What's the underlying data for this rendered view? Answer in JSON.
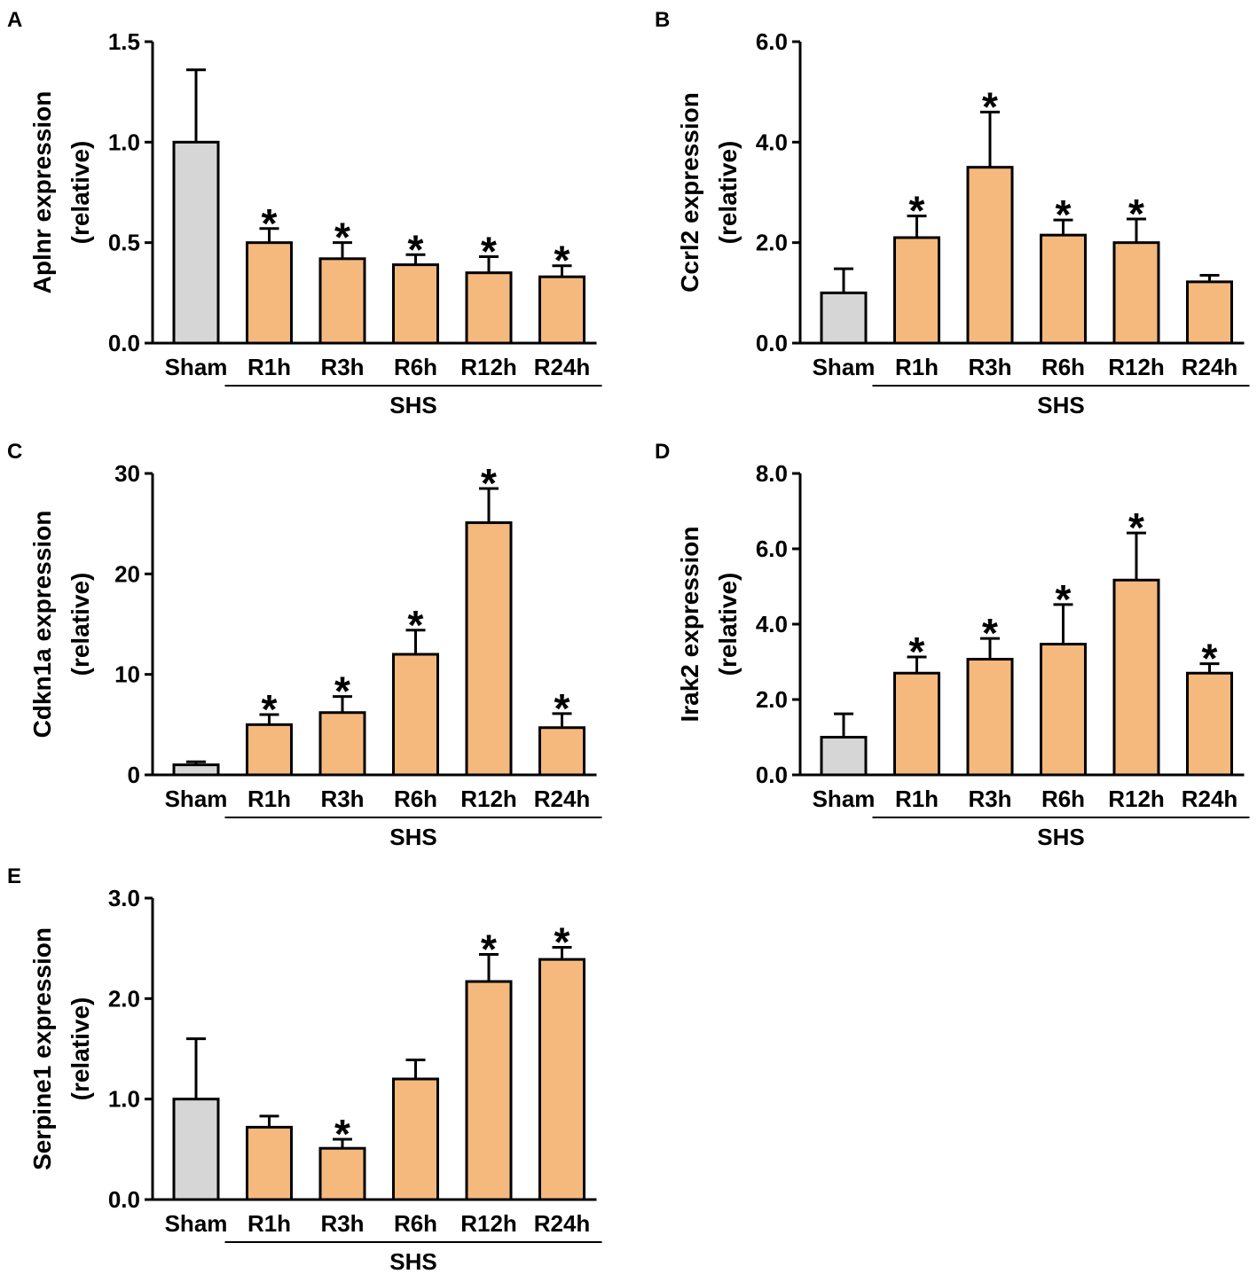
{
  "colors": {
    "sham": "#d6d6d6",
    "shs": "#f5b97e",
    "stroke": "#000000"
  },
  "chart_data": [
    {
      "panel_label": "A",
      "type": "bar",
      "ylabel_line1": "Aplnr expression",
      "ylabel_line2": "(relative)",
      "group_label": "SHS",
      "categories": [
        "Sham",
        "R1h",
        "R3h",
        "R6h",
        "R12h",
        "R24h"
      ],
      "values": [
        1.0,
        0.5,
        0.42,
        0.39,
        0.35,
        0.33
      ],
      "errors": [
        0.36,
        0.07,
        0.08,
        0.05,
        0.08,
        0.055
      ],
      "significant": [
        false,
        true,
        true,
        true,
        true,
        true
      ],
      "star": "*",
      "ylim": [
        0,
        1.5
      ],
      "yticks": [
        0,
        0.5,
        1.0,
        1.5
      ],
      "ytick_labels": [
        "0.0",
        "0.5",
        "1.0",
        "1.5"
      ]
    },
    {
      "panel_label": "B",
      "type": "bar",
      "ylabel_line1": "Ccrl2 expression",
      "ylabel_line2": "(relative)",
      "group_label": "SHS",
      "categories": [
        "Sham",
        "R1h",
        "R3h",
        "R6h",
        "R12h",
        "R24h"
      ],
      "values": [
        1.0,
        2.1,
        3.5,
        2.15,
        2.0,
        1.22
      ],
      "errors": [
        0.48,
        0.43,
        1.1,
        0.3,
        0.47,
        0.13
      ],
      "significant": [
        false,
        true,
        true,
        true,
        true,
        false
      ],
      "star": "*",
      "ylim": [
        0,
        6
      ],
      "yticks": [
        0,
        2,
        4,
        6
      ],
      "ytick_labels": [
        "0.0",
        "2.0",
        "4.0",
        "6.0"
      ]
    },
    {
      "panel_label": "C",
      "type": "bar",
      "ylabel_line1": "Cdkn1a expression",
      "ylabel_line2": "(relative)",
      "group_label": "SHS",
      "categories": [
        "Sham",
        "R1h",
        "R3h",
        "R6h",
        "R12h",
        "R24h"
      ],
      "values": [
        1.0,
        5.0,
        6.2,
        12.0,
        25.1,
        4.7
      ],
      "errors": [
        0.3,
        1.0,
        1.6,
        2.4,
        3.4,
        1.4
      ],
      "significant": [
        false,
        true,
        true,
        true,
        true,
        true
      ],
      "star": "*",
      "ylim": [
        0,
        30
      ],
      "yticks": [
        0,
        10,
        20,
        30
      ],
      "ytick_labels": [
        "0",
        "10",
        "20",
        "30"
      ]
    },
    {
      "panel_label": "D",
      "type": "bar",
      "ylabel_line1": "Irak2 expression",
      "ylabel_line2": "(relative)",
      "group_label": "SHS",
      "categories": [
        "Sham",
        "R1h",
        "R3h",
        "R6h",
        "R12h",
        "R24h"
      ],
      "values": [
        1.0,
        2.7,
        3.07,
        3.47,
        5.17,
        2.7
      ],
      "errors": [
        0.62,
        0.43,
        0.55,
        1.05,
        1.25,
        0.25
      ],
      "significant": [
        false,
        true,
        true,
        true,
        true,
        true
      ],
      "star": "*",
      "ylim": [
        0,
        8
      ],
      "yticks": [
        0,
        2,
        4,
        6,
        8
      ],
      "ytick_labels": [
        "0.0",
        "2.0",
        "4.0",
        "6.0",
        "8.0"
      ]
    },
    {
      "panel_label": "E",
      "type": "bar",
      "ylabel_line1": "Serpine1 expression",
      "ylabel_line2": "(relative)",
      "group_label": "SHS",
      "categories": [
        "Sham",
        "R1h",
        "R3h",
        "R6h",
        "R12h",
        "R24h"
      ],
      "values": [
        1.0,
        0.72,
        0.51,
        1.2,
        2.17,
        2.39
      ],
      "errors": [
        0.6,
        0.11,
        0.09,
        0.19,
        0.27,
        0.12
      ],
      "significant": [
        false,
        false,
        true,
        false,
        true,
        true
      ],
      "star": "*",
      "ylim": [
        0,
        3
      ],
      "yticks": [
        0,
        1,
        2,
        3
      ],
      "ytick_labels": [
        "0.0",
        "1.0",
        "2.0",
        "3.0"
      ]
    }
  ]
}
